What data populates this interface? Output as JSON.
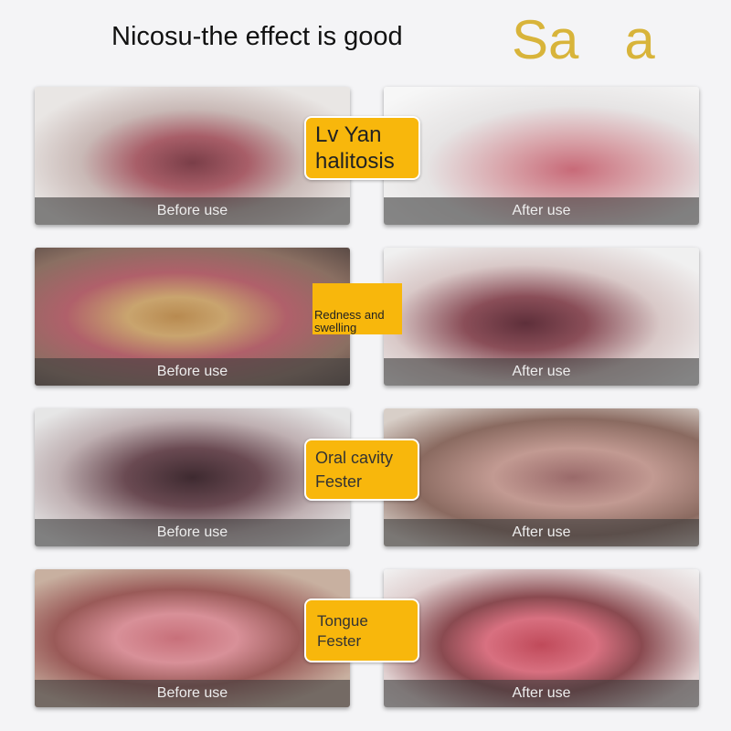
{
  "title": "Nicosu-the effect is good",
  "rows": [
    {
      "before": "Before use",
      "after": "After use",
      "label": [
        "Lv Yan",
        "halitosis"
      ]
    },
    {
      "before": "Before use",
      "after": "After use",
      "label": [
        "Redness and",
        "swelling"
      ]
    },
    {
      "before": "Before use",
      "after": "After use",
      "label": [
        "Oral cavity",
        "Fester"
      ]
    },
    {
      "before": "Before use",
      "after": "After use",
      "label": [
        "Tongue",
        "Fester"
      ]
    }
  ],
  "watermark": "Sa   a",
  "colors": {
    "label_bg": "#f8b70c",
    "caption_bg": "#3c3c3c"
  }
}
